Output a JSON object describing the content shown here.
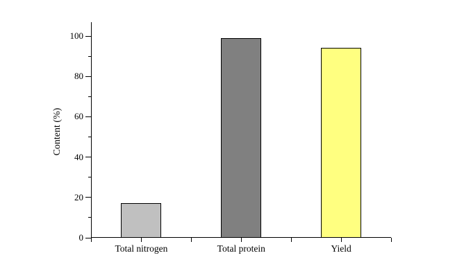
{
  "chart_data": {
    "type": "bar",
    "categories": [
      "Total nitrogen",
      "Total protein",
      "Yield"
    ],
    "values": [
      17.3,
      99,
      94
    ],
    "bar_colors": [
      "#c0c0c0",
      "#808080",
      "#ffff80"
    ],
    "bar_border_color": "#000000",
    "title": "",
    "xlabel": "",
    "ylabel": "Content (%)",
    "ylim": [
      0,
      107
    ],
    "yticks_major": [
      0,
      20,
      40,
      60,
      80,
      100
    ],
    "yticks_minor": [
      10,
      30,
      50,
      70,
      90
    ],
    "grid": false,
    "legend": "none",
    "background": "#ffffff",
    "axis_color": "#000000",
    "tick_direction": "out"
  }
}
